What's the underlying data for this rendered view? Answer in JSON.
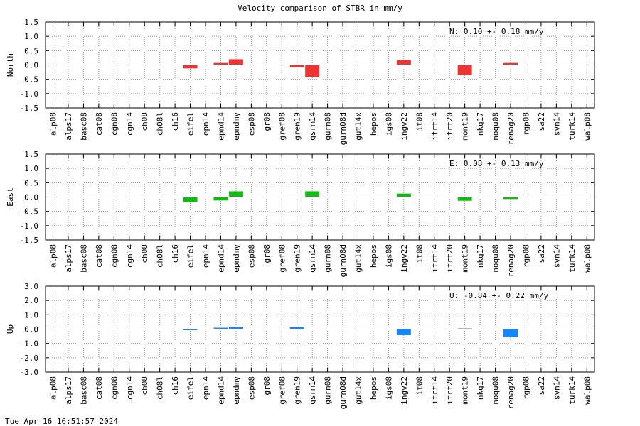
{
  "title": "Velocity comparison of STBR in mm/y",
  "timestamp": "Tue Apr 16 16:51:57 2024",
  "chart_data": [
    {
      "type": "bar",
      "ylabel": "North",
      "ylim": [
        -1.5,
        1.5
      ],
      "yticks": [
        "1.5",
        "1.0",
        "0.5",
        "0.0",
        "-0.5",
        "-1.0",
        "-1.5"
      ],
      "ytick_values": [
        1.5,
        1.0,
        0.5,
        0.0,
        -0.5,
        -1.0,
        -1.5
      ],
      "annotation": "N:   0.10 +-  0.18 mm/y",
      "color": "#ee3333",
      "grid": true,
      "categories": [
        "alp08",
        "alps17",
        "basc08",
        "cat08",
        "cgn08",
        "cgn14",
        "ch08",
        "ch08l",
        "ch16",
        "eifel",
        "epn14",
        "epnd14",
        "epndmy",
        "esp08",
        "gr08",
        "gref08",
        "gren19",
        "gsrm14",
        "gurn08",
        "gurn08d",
        "gut14x",
        "hepos",
        "igs08",
        "ingv22",
        "it08",
        "itrf14",
        "itrf20",
        "mont19",
        "nkg17",
        "noqu08",
        "renag20",
        "rgp08",
        "sa22",
        "svn14",
        "turk14",
        "walp08"
      ],
      "values": [
        null,
        null,
        null,
        null,
        null,
        null,
        null,
        null,
        null,
        -0.12,
        null,
        0.07,
        0.2,
        null,
        null,
        null,
        -0.08,
        -0.42,
        null,
        null,
        null,
        null,
        null,
        0.17,
        null,
        null,
        null,
        -0.35,
        null,
        null,
        0.07,
        null,
        null,
        null,
        null,
        null
      ]
    },
    {
      "type": "bar",
      "ylabel": "East",
      "ylim": [
        -1.5,
        1.5
      ],
      "yticks": [
        "1.5",
        "1.0",
        "0.5",
        "0.0",
        "-0.5",
        "-1.0",
        "-1.5"
      ],
      "ytick_values": [
        1.5,
        1.0,
        0.5,
        0.0,
        -0.5,
        -1.0,
        -1.5
      ],
      "annotation": "E:   0.08 +-  0.13 mm/y",
      "color": "#11bb11",
      "grid": true,
      "categories": [
        "alp08",
        "alps17",
        "basc08",
        "cat08",
        "cgn08",
        "cgn14",
        "ch08",
        "ch08l",
        "ch16",
        "eifel",
        "epn14",
        "epnd14",
        "epndmy",
        "esp08",
        "gr08",
        "gref08",
        "gren19",
        "gsrm14",
        "gurn08",
        "gurn08d",
        "gut14x",
        "hepos",
        "igs08",
        "ingv22",
        "it08",
        "itrf14",
        "itrf20",
        "mont19",
        "nkg17",
        "noqu08",
        "renag20",
        "rgp08",
        "sa22",
        "svn14",
        "turk14",
        "walp08"
      ],
      "values": [
        null,
        null,
        null,
        null,
        null,
        null,
        null,
        null,
        null,
        -0.17,
        null,
        -0.12,
        0.2,
        null,
        null,
        null,
        null,
        0.2,
        null,
        null,
        null,
        null,
        null,
        0.12,
        null,
        null,
        null,
        -0.13,
        null,
        null,
        -0.07,
        null,
        null,
        null,
        null,
        null
      ]
    },
    {
      "type": "bar",
      "ylabel": "Up",
      "ylim": [
        -3.0,
        3.0
      ],
      "yticks": [
        "3.0",
        "2.0",
        "1.0",
        "0.0",
        "-1.0",
        "-2.0",
        "-3.0"
      ],
      "ytick_values": [
        3.0,
        2.0,
        1.0,
        0.0,
        -1.0,
        -2.0,
        -3.0
      ],
      "annotation": "U:  -0.84 +-  0.22 mm/y",
      "color": "#1188ff",
      "grid": true,
      "categories": [
        "alp08",
        "alps17",
        "basc08",
        "cat08",
        "cgn08",
        "cgn14",
        "ch08",
        "ch08l",
        "ch16",
        "eifel",
        "epn14",
        "epnd14",
        "epndmy",
        "esp08",
        "gr08",
        "gref08",
        "gren19",
        "gsrm14",
        "gurn08",
        "gurn08d",
        "gut14x",
        "hepos",
        "igs08",
        "ingv22",
        "it08",
        "itrf14",
        "itrf20",
        "mont19",
        "nkg17",
        "noqu08",
        "renag20",
        "rgp08",
        "sa22",
        "svn14",
        "turk14",
        "walp08"
      ],
      "values": [
        null,
        null,
        null,
        null,
        null,
        null,
        null,
        null,
        null,
        -0.07,
        null,
        0.1,
        0.15,
        null,
        null,
        null,
        0.15,
        null,
        null,
        null,
        null,
        null,
        null,
        -0.42,
        null,
        null,
        null,
        0.05,
        null,
        null,
        -0.55,
        null,
        null,
        null,
        null,
        null
      ]
    }
  ]
}
